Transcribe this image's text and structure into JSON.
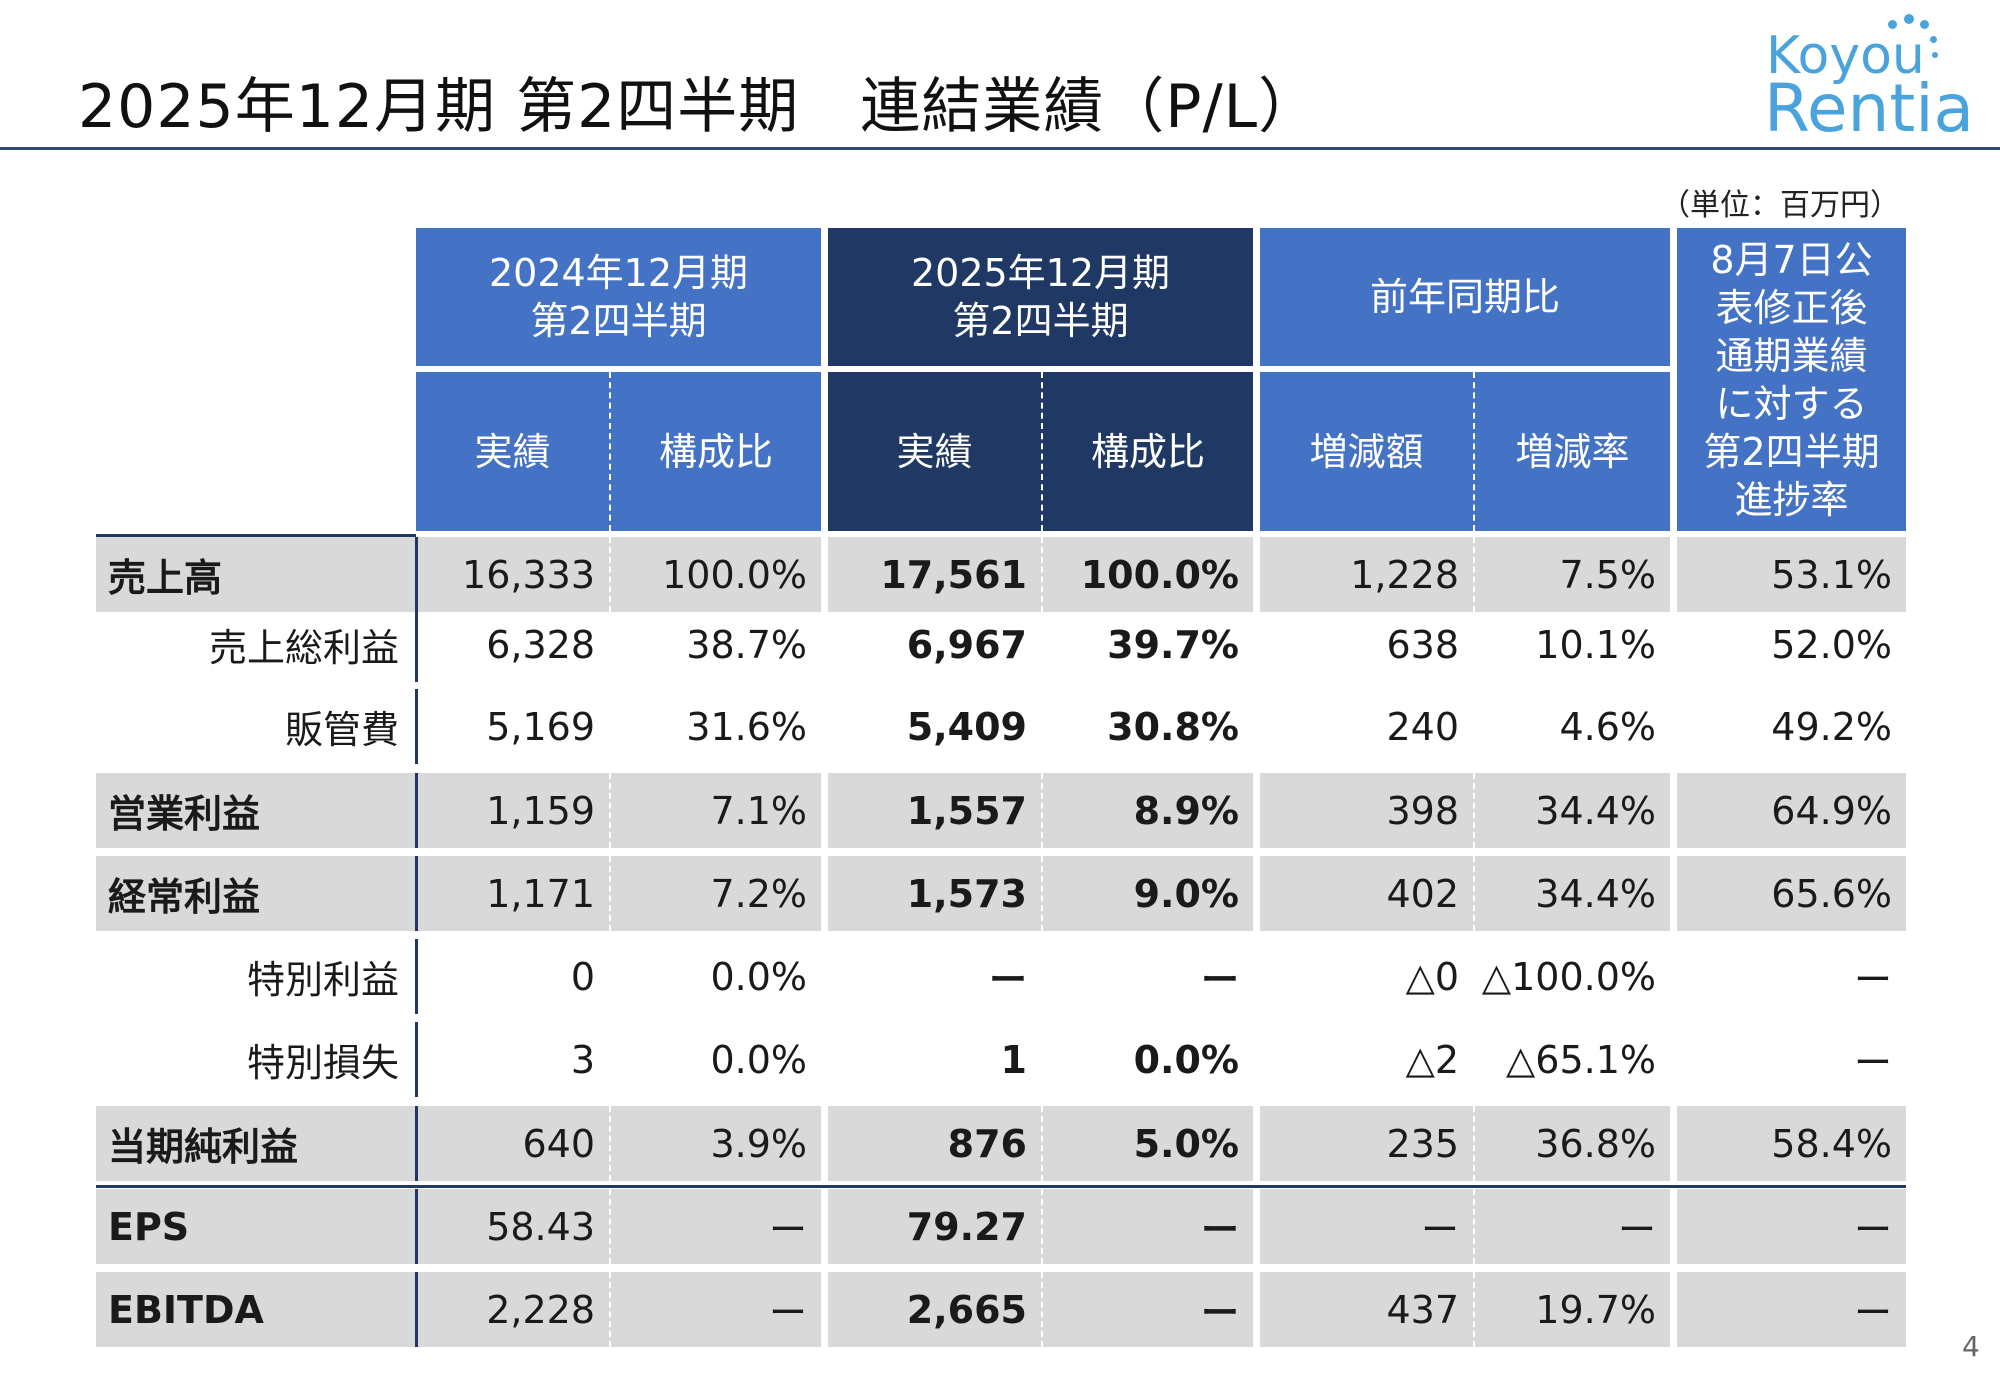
{
  "title": "2025年12月期 第2四半期　連結業績（P/L）",
  "logo": {
    "line1": "Koyou",
    "line2": "Rentia",
    "color": "#4aa3dc"
  },
  "unit_note": "（単位：百万円）",
  "page_number": "4",
  "colors": {
    "header_light": "#4472c4",
    "header_dark": "#203864",
    "row_shade": "#d9d9d9"
  },
  "header": {
    "group1": "2024年12月期\n第2四半期",
    "group2": "2025年12月期\n第2四半期",
    "group3": "前年同期比",
    "group4": "8月7日公\n表修正後\n通期業績\nに対する\n第2四半期\n進捗率",
    "actual": "実績",
    "ratio": "構成比",
    "change_amount": "増減額",
    "change_rate": "増減率"
  },
  "rows": [
    {
      "label": "売上高",
      "main": true,
      "cells": [
        "16,333",
        "100.0%",
        "17,561",
        "100.0%",
        "1,228",
        "7.5%",
        "53.1%"
      ]
    },
    {
      "label": "売上総利益",
      "main": false,
      "cells": [
        "6,328",
        "38.7%",
        "6,967",
        "39.7%",
        "638",
        "10.1%",
        "52.0%"
      ]
    },
    {
      "label": "販管費",
      "main": false,
      "cells": [
        "5,169",
        "31.6%",
        "5,409",
        "30.8%",
        "240",
        "4.6%",
        "49.2%"
      ]
    },
    {
      "label": "営業利益",
      "main": true,
      "cells": [
        "1,159",
        "7.1%",
        "1,557",
        "8.9%",
        "398",
        "34.4%",
        "64.9%"
      ]
    },
    {
      "label": "経常利益",
      "main": true,
      "cells": [
        "1,171",
        "7.2%",
        "1,573",
        "9.0%",
        "402",
        "34.4%",
        "65.6%"
      ]
    },
    {
      "label": "特別利益",
      "main": false,
      "cells": [
        "0",
        "0.0%",
        "ー",
        "ー",
        "△0",
        "△100.0%",
        "ー"
      ]
    },
    {
      "label": "特別損失",
      "main": false,
      "cells": [
        "3",
        "0.0%",
        "1",
        "0.0%",
        "△2",
        "△65.1%",
        "ー"
      ]
    },
    {
      "label": "当期純利益",
      "main": true,
      "cells": [
        "640",
        "3.9%",
        "876",
        "5.0%",
        "235",
        "36.8%",
        "58.4%"
      ]
    },
    {
      "label": "EPS",
      "main": true,
      "cells": [
        "58.43",
        "ー",
        "79.27",
        "ー",
        "ー",
        "ー",
        "ー"
      ]
    },
    {
      "label": "EBITDA",
      "main": true,
      "cells": [
        "2,228",
        "ー",
        "2,665",
        "ー",
        "437",
        "19.7%",
        "ー"
      ]
    }
  ]
}
